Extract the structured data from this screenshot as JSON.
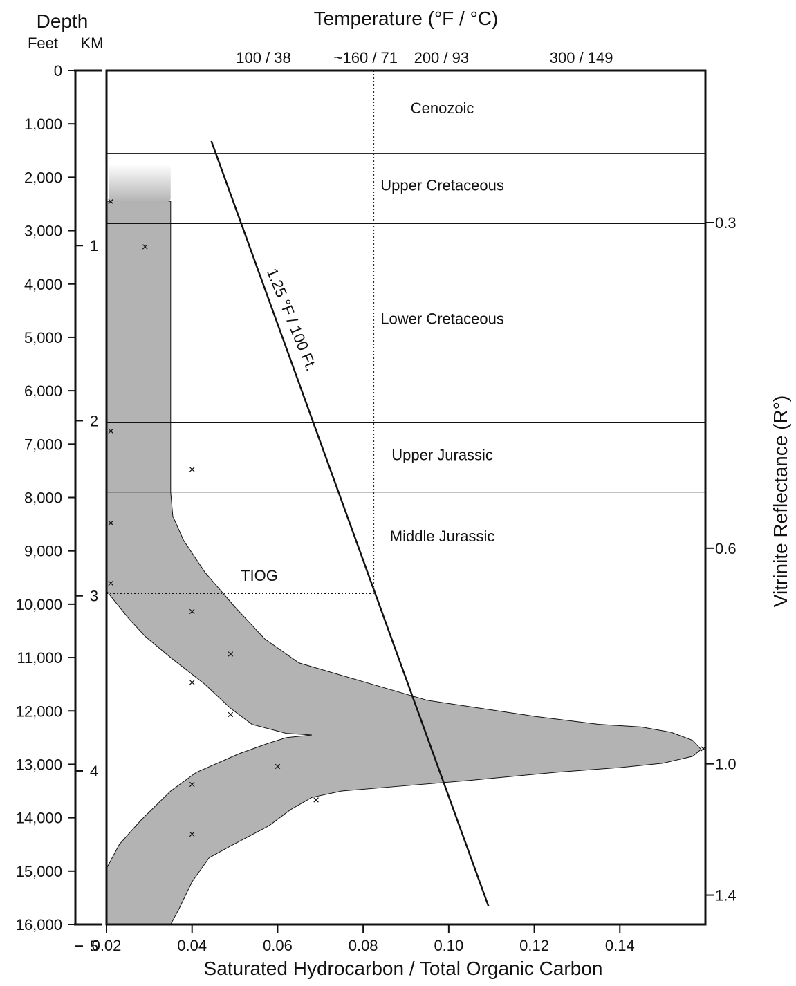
{
  "chart_data": {
    "type": "scatter",
    "title": "",
    "xlabel": "Saturated Hydrocarbon / Total Organic Carbon",
    "xlim": [
      0.02,
      0.16
    ],
    "x_ticks": [
      {
        "value": 0.02,
        "label": "0.02"
      },
      {
        "value": 0.04,
        "label": "0.04"
      },
      {
        "value": 0.06,
        "label": "0.06"
      },
      {
        "value": 0.08,
        "label": "0.08"
      },
      {
        "value": 0.1,
        "label": "0.10"
      },
      {
        "value": 0.12,
        "label": "0.12"
      },
      {
        "value": 0.14,
        "label": "0.14"
      }
    ],
    "depth_axis": {
      "title": "Depth",
      "feet_label": "Feet",
      "km_label": "KM",
      "ylim_feet": [
        0,
        16000
      ],
      "feet_ticks": [
        {
          "value": 0,
          "label": "0"
        },
        {
          "value": 1000,
          "label": "1,000"
        },
        {
          "value": 2000,
          "label": "2,000"
        },
        {
          "value": 3000,
          "label": "3,000"
        },
        {
          "value": 4000,
          "label": "4,000"
        },
        {
          "value": 5000,
          "label": "5,000"
        },
        {
          "value": 6000,
          "label": "6,000"
        },
        {
          "value": 7000,
          "label": "7,000"
        },
        {
          "value": 8000,
          "label": "8,000"
        },
        {
          "value": 9000,
          "label": "9,000"
        },
        {
          "value": 10000,
          "label": "10,000"
        },
        {
          "value": 11000,
          "label": "11,000"
        },
        {
          "value": 12000,
          "label": "12,000"
        },
        {
          "value": 13000,
          "label": "13,000"
        },
        {
          "value": 14000,
          "label": "14,000"
        },
        {
          "value": 15000,
          "label": "15,000"
        },
        {
          "value": 16000,
          "label": "16,000"
        }
      ],
      "km_ticks": [
        {
          "value": 1,
          "label": "1"
        },
        {
          "value": 2,
          "label": "2"
        },
        {
          "value": 3,
          "label": "3"
        },
        {
          "value": 4,
          "label": "4"
        },
        {
          "value": 5,
          "label": "5"
        }
      ]
    },
    "temperature_axis": {
      "title": "Temperature (°F / °C)",
      "ticks": [
        {
          "label": "100 / 38",
          "x": 0.0567
        },
        {
          "label": "~160 / 71",
          "x": 0.0806
        },
        {
          "label": "200 / 93",
          "x": 0.0983
        },
        {
          "label": "300 / 149",
          "x": 0.131
        }
      ]
    },
    "vitrinite_axis": {
      "title": "Vitrinite Reflectance (R°)",
      "ticks": [
        {
          "value": 0.3,
          "label": "0.3",
          "depth_ft": 2850
        },
        {
          "value": 0.6,
          "label": "0.6",
          "depth_ft": 8950
        },
        {
          "value": 1.0,
          "label": "1.0",
          "depth_ft": 12990
        },
        {
          "value": 1.4,
          "label": "1.4",
          "depth_ft": 15450
        }
      ]
    },
    "stratigraphy": {
      "boundaries_ft": [
        1550,
        2870,
        6600,
        7900
      ],
      "units": [
        {
          "name": "Cenozoic",
          "depth_ft": 800,
          "x": 0.0985
        },
        {
          "name": "Upper Cretaceous",
          "depth_ft": 2250,
          "x": 0.0985
        },
        {
          "name": "Lower Cretaceous",
          "depth_ft": 4750,
          "x": 0.0985
        },
        {
          "name": "Upper Jurassic",
          "depth_ft": 7300,
          "x": 0.0985
        },
        {
          "name": "Middle Jurassic",
          "depth_ft": 8820,
          "x": 0.0985
        }
      ]
    },
    "tiog": {
      "label": "TIOG",
      "depth_ft": 9800,
      "temperature_x": 0.0825
    },
    "gradient_line": {
      "label": "1.25 °F / 100 Ft.",
      "start": {
        "x": 0.0445,
        "depth_ft": 1320
      },
      "end": {
        "x": 0.1093,
        "depth_ft": 15660
      }
    },
    "points": [
      {
        "x": 0.021,
        "depth_ft": 2450
      },
      {
        "x": 0.029,
        "depth_ft": 3300
      },
      {
        "x": 0.021,
        "depth_ft": 6750
      },
      {
        "x": 0.04,
        "depth_ft": 7470
      },
      {
        "x": 0.021,
        "depth_ft": 8470
      },
      {
        "x": 0.021,
        "depth_ft": 9600
      },
      {
        "x": 0.04,
        "depth_ft": 10130
      },
      {
        "x": 0.049,
        "depth_ft": 10930
      },
      {
        "x": 0.04,
        "depth_ft": 11460
      },
      {
        "x": 0.049,
        "depth_ft": 12060
      },
      {
        "x": 0.06,
        "depth_ft": 13030
      },
      {
        "x": 0.04,
        "depth_ft": 13370
      },
      {
        "x": 0.069,
        "depth_ft": 13660
      },
      {
        "x": 0.04,
        "depth_ft": 14300
      },
      {
        "x": 0.1595,
        "depth_ft": 12700
      }
    ],
    "envelope": {
      "right_edge": [
        [
          0.035,
          2500
        ],
        [
          0.035,
          7900
        ],
        [
          0.0355,
          8350
        ],
        [
          0.038,
          8800
        ],
        [
          0.043,
          9400
        ],
        [
          0.05,
          10050
        ],
        [
          0.057,
          10650
        ],
        [
          0.065,
          11100
        ],
        [
          0.08,
          11450
        ],
        [
          0.095,
          11800
        ],
        [
          0.12,
          12100
        ],
        [
          0.135,
          12250
        ],
        [
          0.145,
          12300
        ],
        [
          0.152,
          12400
        ],
        [
          0.157,
          12550
        ],
        [
          0.159,
          12720
        ],
        [
          0.157,
          12850
        ],
        [
          0.15,
          12980
        ],
        [
          0.14,
          13060
        ],
        [
          0.125,
          13150
        ],
        [
          0.105,
          13300
        ],
        [
          0.09,
          13400
        ],
        [
          0.075,
          13500
        ],
        [
          0.068,
          13620
        ],
        [
          0.063,
          13850
        ],
        [
          0.058,
          14150
        ],
        [
          0.049,
          14530
        ],
        [
          0.044,
          14750
        ],
        [
          0.04,
          15200
        ],
        [
          0.037,
          15700
        ],
        [
          0.035,
          16000
        ]
      ],
      "left_edge": [
        [
          0.02,
          14950
        ],
        [
          0.023,
          14500
        ],
        [
          0.028,
          14050
        ],
        [
          0.035,
          13500
        ],
        [
          0.041,
          13150
        ],
        [
          0.051,
          12800
        ],
        [
          0.058,
          12600
        ],
        [
          0.062,
          12500
        ],
        [
          0.068,
          12450
        ],
        [
          0.062,
          12420
        ],
        [
          0.054,
          12250
        ],
        [
          0.049,
          11950
        ],
        [
          0.043,
          11500
        ],
        [
          0.035,
          11000
        ],
        [
          0.029,
          10600
        ],
        [
          0.025,
          10250
        ],
        [
          0.0215,
          9900
        ],
        [
          0.02,
          9750
        ]
      ],
      "faded_top_ft": 1750,
      "solid_top_ft": 2450
    }
  }
}
